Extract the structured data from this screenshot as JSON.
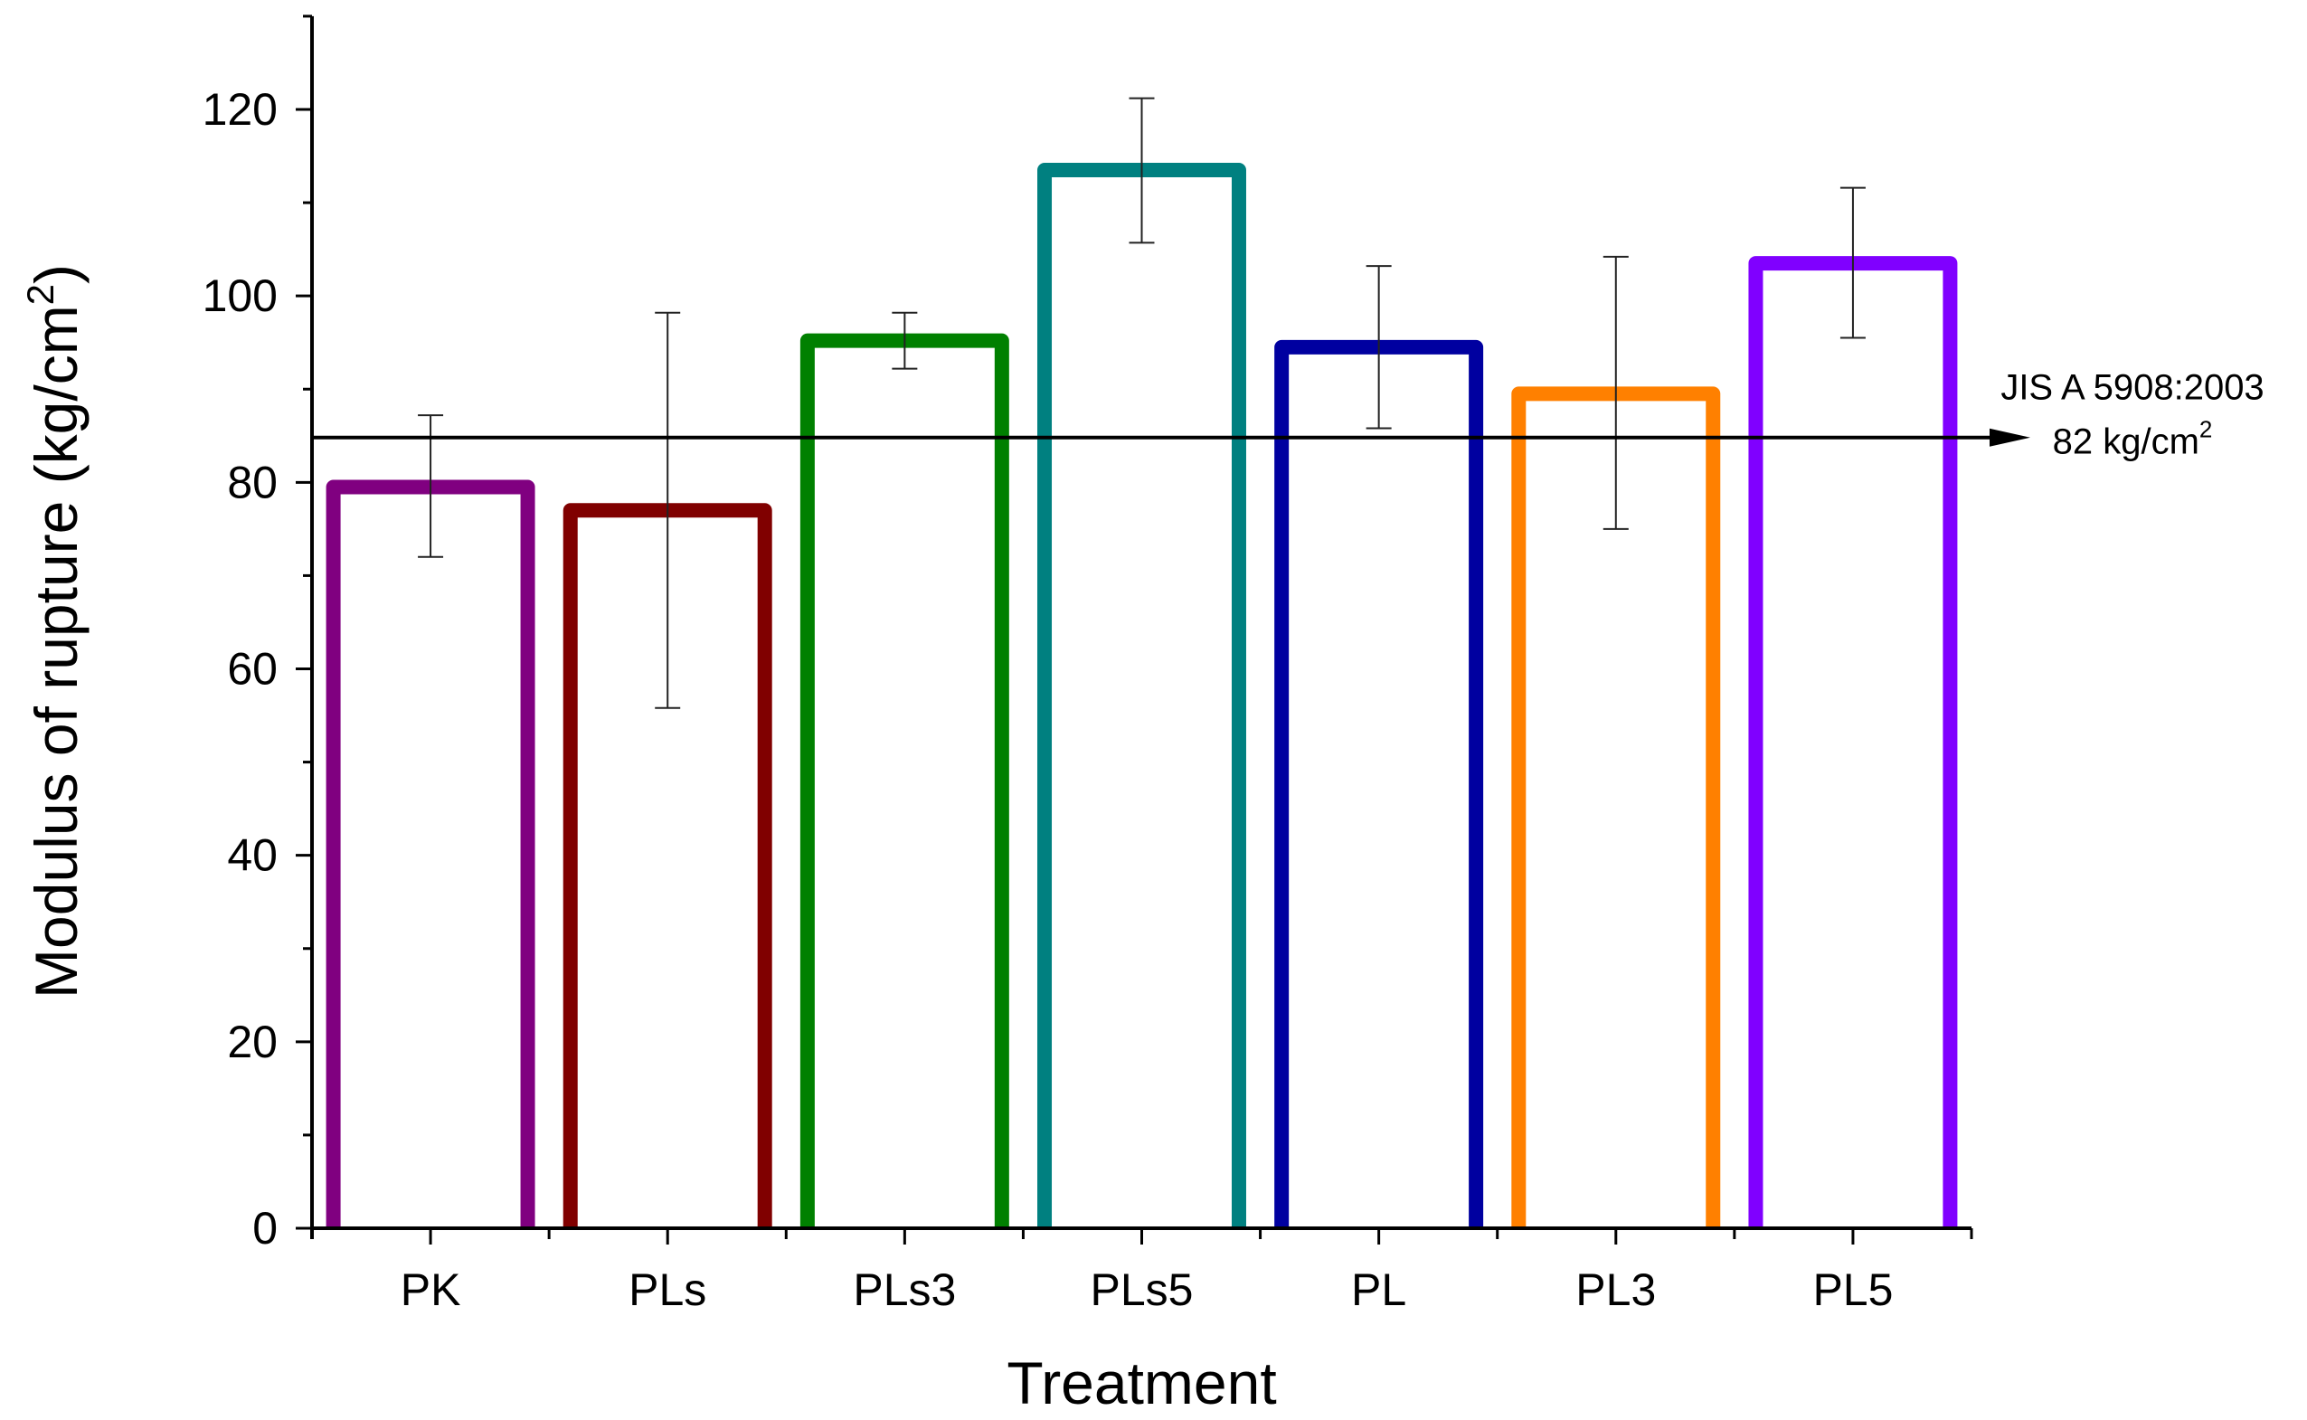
{
  "chart_data": {
    "type": "bar",
    "title": "",
    "xlabel": "Treatment",
    "ylabel": "Modulus of rupture (kg/cm",
    "ylabel_sup": "2",
    "ylabel_close": ")",
    "ylim": [
      0,
      130
    ],
    "yticks": [
      0,
      20,
      40,
      60,
      80,
      100,
      120
    ],
    "ytick_labels": [
      "0",
      "20",
      "40",
      "60",
      "80",
      "100",
      "120"
    ],
    "categories": [
      "PK",
      "PLs",
      "PLs3",
      "PLs5",
      "PL",
      "PL3",
      "PL5"
    ],
    "values": [
      79.5,
      77.0,
      95.2,
      113.5,
      94.5,
      89.5,
      103.5
    ],
    "error_bars": [
      {
        "low": 72.0,
        "high": 87.2
      },
      {
        "low": 55.8,
        "high": 98.2
      },
      {
        "low": 92.2,
        "high": 98.2
      },
      {
        "low": 105.7,
        "high": 121.2
      },
      {
        "low": 85.8,
        "high": 103.2
      },
      {
        "low": 75.0,
        "high": 104.2
      },
      {
        "low": 95.5,
        "high": 111.6
      }
    ],
    "colors": [
      "#800080",
      "#800000",
      "#008000",
      "#008080",
      "#0000A0",
      "#FF8000",
      "#8000FF"
    ],
    "reference_line": {
      "value": 82,
      "label_line1": "JIS A 5908:2003",
      "label_line2": "82 kg/cm",
      "label_sup": "2"
    }
  }
}
